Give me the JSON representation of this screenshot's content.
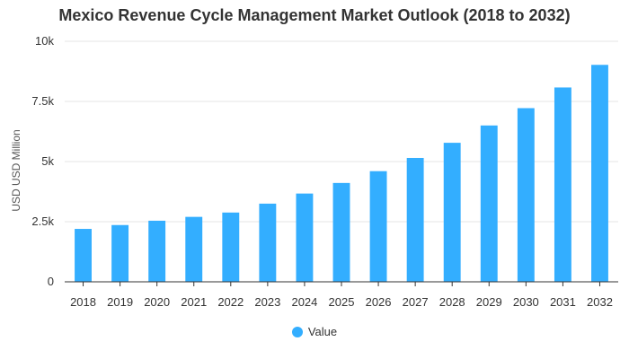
{
  "colors": {
    "bar": "#33AEFF",
    "grid": "#E6E6E6",
    "axis": "#333333",
    "text": "#333333"
  },
  "chart_data": {
    "type": "bar",
    "title": "Mexico Revenue Cycle Management Market Outlook (2018 to 2032)",
    "xlabel": "",
    "ylabel": "USD USD Million",
    "ylim": [
      0,
      10000
    ],
    "yticks": [
      0,
      2500,
      5000,
      7500,
      10000
    ],
    "ytick_labels": [
      "0",
      "2.5k",
      "5k",
      "7.5k",
      "10k"
    ],
    "grid": true,
    "legend_position": "bottom",
    "categories": [
      "2018",
      "2019",
      "2020",
      "2021",
      "2022",
      "2023",
      "2024",
      "2025",
      "2026",
      "2027",
      "2028",
      "2029",
      "2030",
      "2031",
      "2032"
    ],
    "series": [
      {
        "name": "Value",
        "values": [
          2200,
          2360,
          2540,
          2700,
          2880,
          3250,
          3670,
          4110,
          4600,
          5150,
          5780,
          6500,
          7220,
          8080,
          9020
        ]
      }
    ]
  }
}
